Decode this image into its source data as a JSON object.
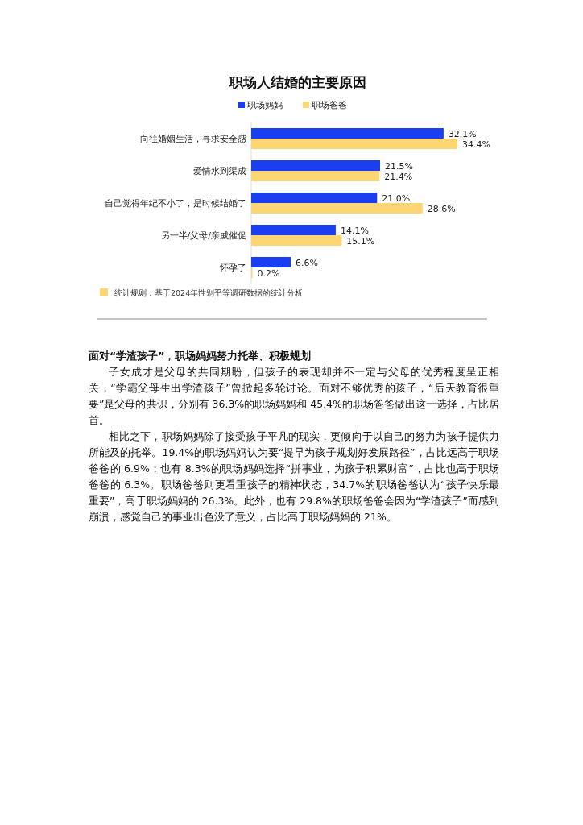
{
  "chart_data": {
    "type": "bar",
    "orientation": "horizontal",
    "title": "职场人结婚的主要原因",
    "categories": [
      "向往婚姻生活，寻求安全感",
      "爱情水到渠成",
      "自己觉得年纪不小了，是时候结婚了",
      "另一半/父母/亲戚催促",
      "怀孕了"
    ],
    "series": [
      {
        "name": "职场妈妈",
        "color": "#1a3ff0",
        "values": [
          32.1,
          21.5,
          21.0,
          14.1,
          6.6
        ],
        "value_labels": [
          "32.1%",
          "21.5%",
          "21.0%",
          "14.1%",
          "6.6%"
        ]
      },
      {
        "name": "职场爸爸",
        "color": "#fcd672",
        "values": [
          34.4,
          21.4,
          28.6,
          15.1,
          0.2
        ],
        "value_labels": [
          "34.4%",
          "21.4%",
          "28.6%",
          "15.1%",
          "0.2%"
        ]
      }
    ],
    "legend": "top",
    "annotations": [
      "统计规则：基于2024年性别平等调研数据的统计分析",
      "面对“学渣孩子”，职场妈妈努力托举、积极规划",
      "子女成才是父母的共同期盼，但孩子的表现却并不一定与父母的优秀程度呈正相关，“学霸父母生出学渣孩子”曾掀起多轮讨论。面对不够优秀的孩子，“后天教育很重要”是父母的共识，分别有 36.3%的职场妈妈和 45.4%的职场爸爸做出这一选择，占比居首。",
      "相比之下，职场妈妈除了接受孩子平凡的现实，更倾向于以自己的努力为孩子提供力所能及的托举。19.4%的职场妈妈认为要“提早为孩子规划好发展路径”，占比远高于职场爸爸的 6.9%；也有 8.3%的职场妈妈选择“拼事业，为孩子积累财富”，占比也高于职场爸爸的 6.3%。职场爸爸则更看重孩子的精神状态，34.7%的职场爸爸认为“孩子快乐最重要”，高于职场妈妈的 26.3%。此外，也有 29.8%的职场爸爸会因为“学渣孩子”而感到崩溃，感觉自己的事业出色没了意义，占比高于职场妈妈的 21%。"
    ]
  }
}
